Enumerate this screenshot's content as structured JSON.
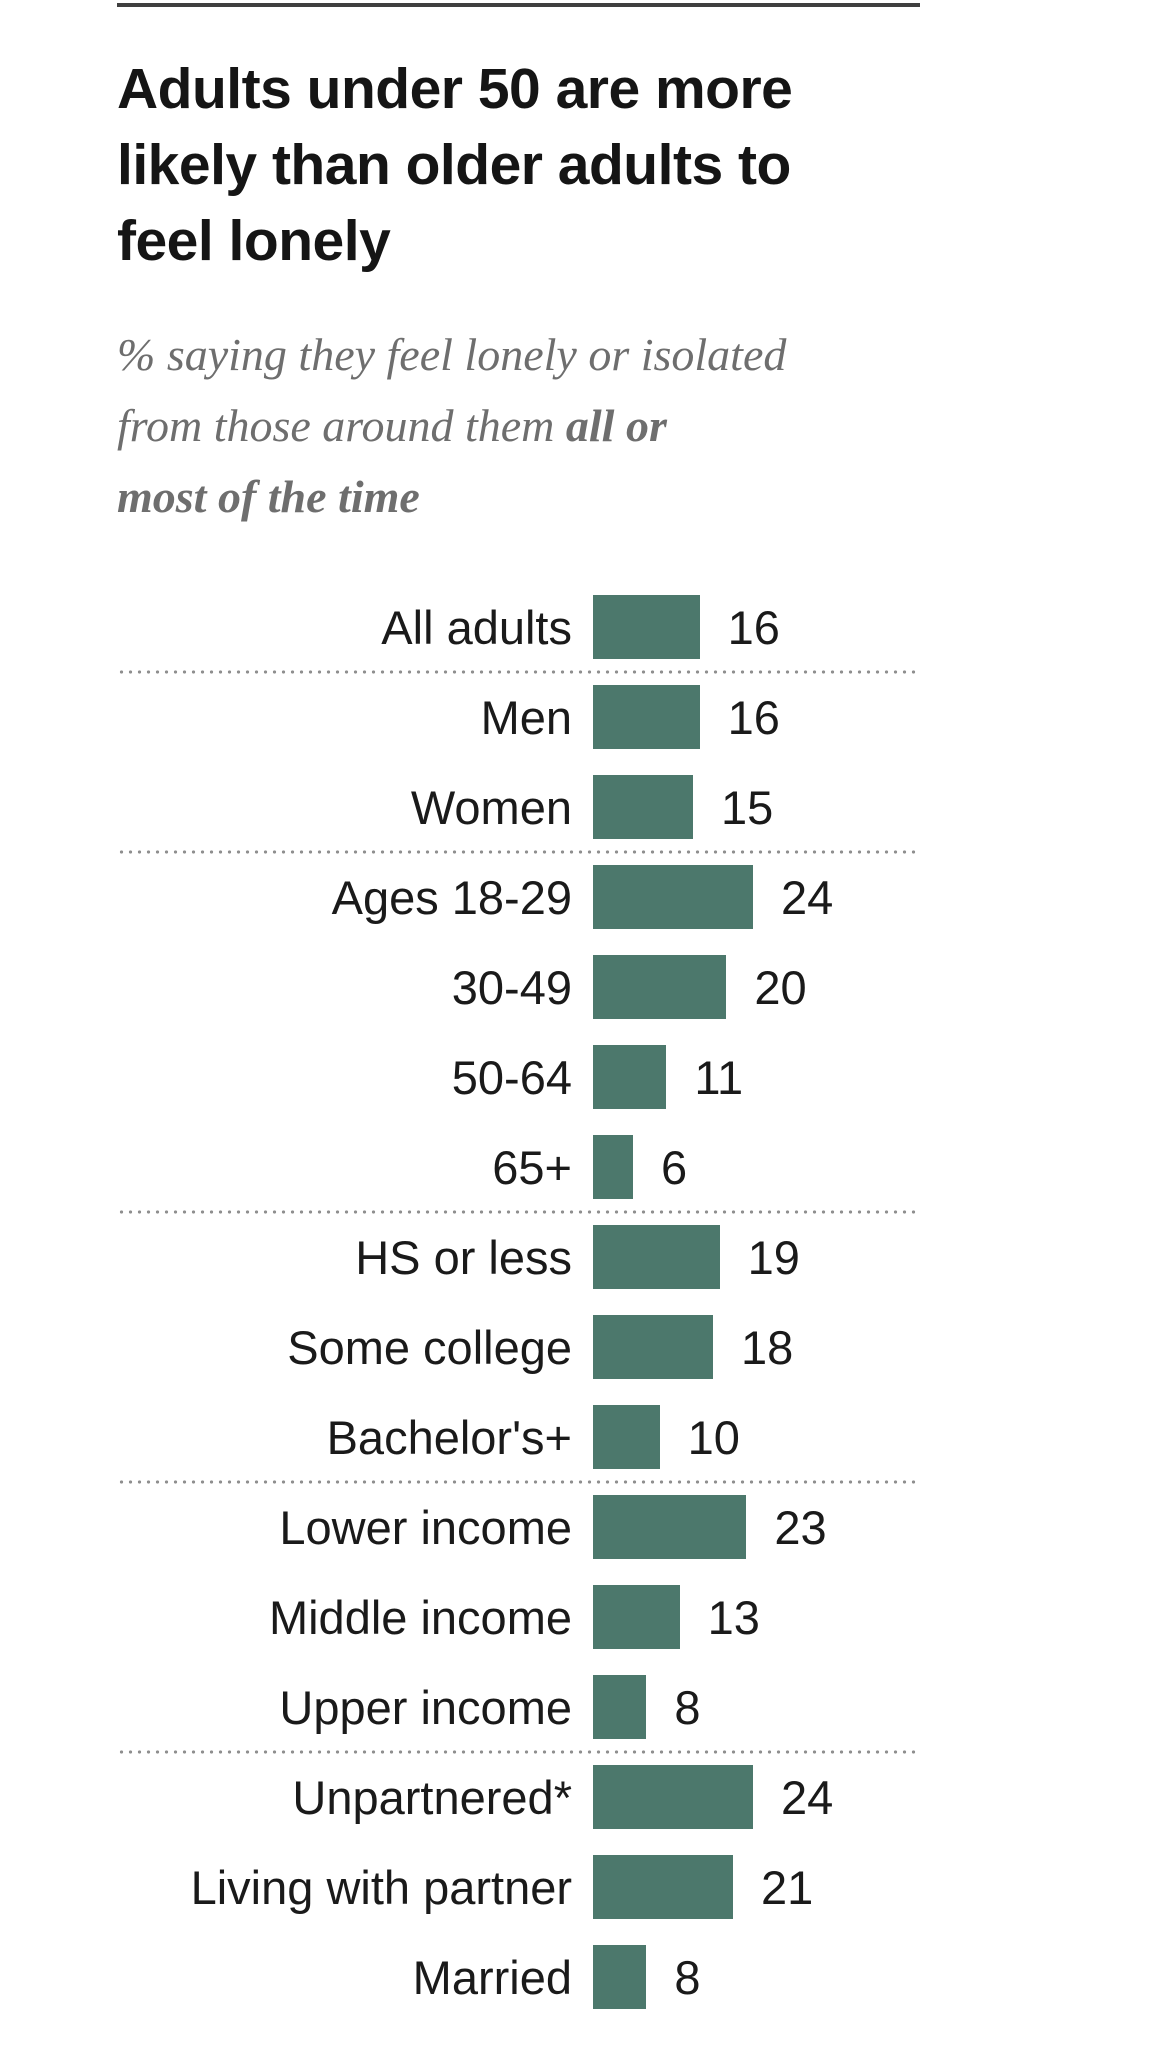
{
  "header": {
    "title": "Adults under 50 are more\nlikely than older adults to\nfeel lonely",
    "subtitle_normal": "% saying they feel lonely or isolated\nfrom those around them ",
    "subtitle_bold": "all or\nmost of the time"
  },
  "colors": {
    "bar": "#4c786c",
    "title_text": "#151515",
    "subtitle_text": "#6e6e6e",
    "label_text": "#1a1a1a",
    "separator_dots": "#8f8f8f",
    "top_rule": "#3f3f3f"
  },
  "chart_data": {
    "type": "bar",
    "orientation": "horizontal",
    "title": "Adults under 50 are more likely than older adults to feel lonely",
    "subtitle": "% saying they feel lonely or isolated from those around them all or most of the time",
    "unit": "%",
    "xlabel": "",
    "ylabel": "",
    "xlim": [
      0,
      24
    ],
    "grid": false,
    "legend": false,
    "value_labels_shown": true,
    "categories": [
      "All adults",
      "Men",
      "Women",
      "Ages 18-29",
      "30-49",
      "50-64",
      "65+",
      "HS or less",
      "Some college",
      "Bachelor's+",
      "Lower income",
      "Middle income",
      "Upper income",
      "Unpartnered*",
      "Living with partner",
      "Married"
    ],
    "values": [
      16,
      16,
      15,
      24,
      20,
      11,
      6,
      19,
      18,
      10,
      23,
      13,
      8,
      24,
      21,
      8
    ],
    "groups": [
      [
        {
          "label": "All adults",
          "value": 16
        }
      ],
      [
        {
          "label": "Men",
          "value": 16
        },
        {
          "label": "Women",
          "value": 15
        }
      ],
      [
        {
          "label": "Ages 18-29",
          "value": 24
        },
        {
          "label": "30-49",
          "value": 20
        },
        {
          "label": "50-64",
          "value": 11
        },
        {
          "label": "65+",
          "value": 6
        }
      ],
      [
        {
          "label": "HS or less",
          "value": 19
        },
        {
          "label": "Some college",
          "value": 18
        },
        {
          "label": "Bachelor's+",
          "value": 10
        }
      ],
      [
        {
          "label": "Lower income",
          "value": 23
        },
        {
          "label": "Middle income",
          "value": 13
        },
        {
          "label": "Upper income",
          "value": 8
        }
      ],
      [
        {
          "label": "Unpartnered*",
          "value": 24
        },
        {
          "label": "Living with partner",
          "value": 21
        },
        {
          "label": "Married",
          "value": 8
        }
      ]
    ]
  }
}
